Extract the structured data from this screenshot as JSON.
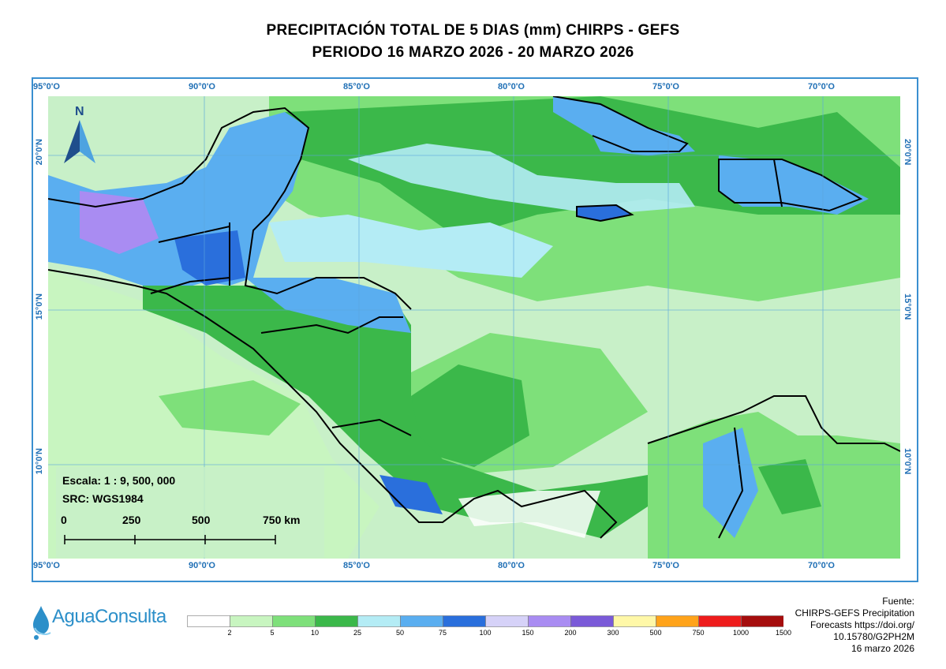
{
  "title": {
    "line1": "PRECIPITACIÓN TOTAL DE 5 DIAS (mm) CHIRPS - GEFS",
    "line2": "PERIODO 16 MARZO 2026 - 20 MARZO 2026"
  },
  "map": {
    "north_label": "N",
    "longitude_labels": [
      "95°0'O",
      "90°0'O",
      "85°0'O",
      "80°0'O",
      "75°0'O",
      "70°0'O"
    ],
    "latitude_labels": [
      "20°0'N",
      "15°0'N",
      "10°0'N"
    ],
    "scale_text": "Escala: 1 : 9, 500, 000",
    "src_text": "SRC: WGS1984",
    "scalebar_labels": [
      "0",
      "250",
      "500",
      "750 km"
    ],
    "colors": {
      "ocean_low": "#c8f0c8",
      "land_mid": "#44c255",
      "border": "#000000",
      "grid": "#5aa6de"
    }
  },
  "legend": {
    "title": "",
    "values": [
      "2",
      "5",
      "10",
      "25",
      "50",
      "75",
      "100",
      "150",
      "200",
      "300",
      "500",
      "750",
      "1000",
      "1500"
    ],
    "colors": [
      "#ffffff",
      "#c8f5c0",
      "#7ee07a",
      "#3bb84a",
      "#b4ecf5",
      "#5aaef0",
      "#2a6fdc",
      "#d6d2f8",
      "#a98cf2",
      "#7a5ad8",
      "#fff8a8",
      "#ffa31a",
      "#ee1c1c",
      "#a50d0d"
    ]
  },
  "logo": {
    "text": "AguaConsulta",
    "icon": "water-drops-icon"
  },
  "source": {
    "lines": [
      "Fuente:",
      "CHIRPS-GEFS Precipitation",
      "Forecasts https://doi.org/",
      "10.15780/G2PH2M",
      "16 marzo 2026"
    ]
  }
}
